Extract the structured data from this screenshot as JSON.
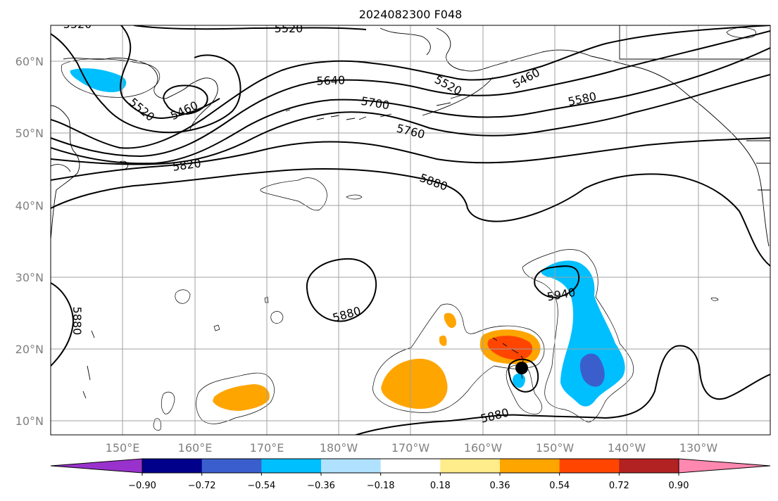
{
  "title": "2024082300 F048",
  "lon_ticks": [
    "150°E",
    "160°E",
    "170°E",
    "180°W",
    "170°W",
    "160°W",
    "150°W",
    "140°W",
    "130°W"
  ],
  "lat_ticks": [
    "60°N",
    "50°N",
    "40°N",
    "30°N",
    "20°N",
    "10°N"
  ],
  "contour_labels": [
    "5520",
    "5520",
    "5460",
    "5520",
    "5640",
    "5520",
    "5460",
    "5700",
    "5580",
    "5760",
    "5820",
    "5880",
    "5880",
    "5880",
    "5940",
    "5880"
  ],
  "colorbar": {
    "tick_labels": [
      "−0.90",
      "−0.72",
      "−0.54",
      "−0.36",
      "−0.18",
      "0.18",
      "0.36",
      "0.54",
      "0.72",
      "0.90"
    ],
    "colors": [
      "#9932cc",
      "#00008b",
      "#3a5fcd",
      "#00bfff",
      "#b0e2ff",
      "#ffffff",
      "#ffec8b",
      "#ffa500",
      "#ff4500",
      "#b22222",
      "#ff88b0"
    ]
  },
  "map": {
    "lon_range": [
      "140°E",
      "120°W"
    ],
    "lat_range": [
      "8°N",
      "65°N"
    ],
    "storm_marker": {
      "lon": "155°W",
      "lat": "17°N"
    }
  }
}
